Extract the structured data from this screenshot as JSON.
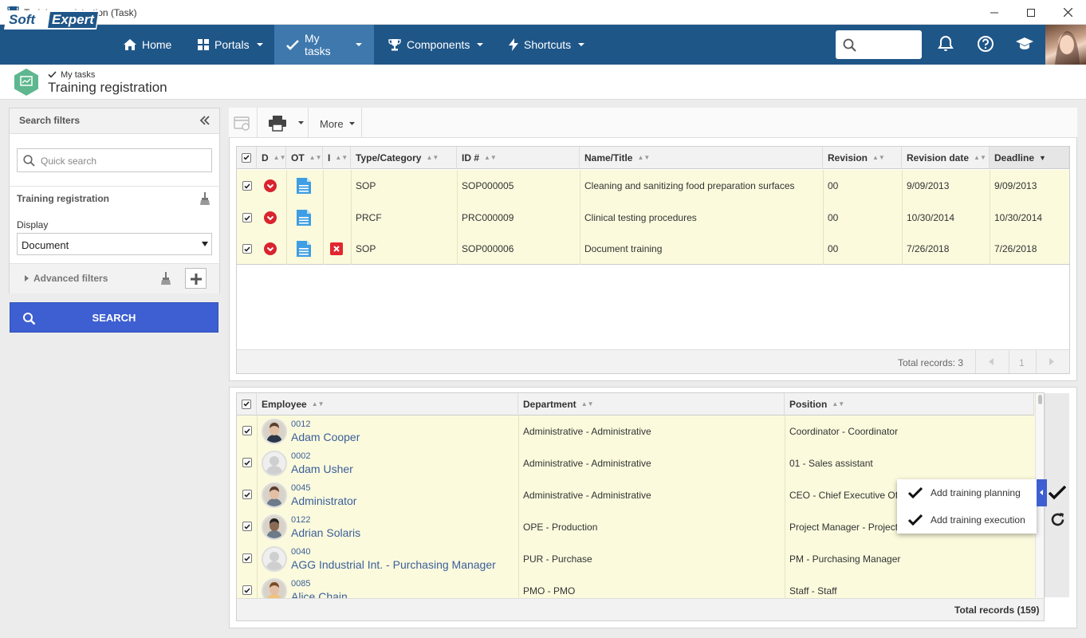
{
  "window": {
    "title": "Training registration (Task)"
  },
  "nav": {
    "brand": {
      "part1": "Soft",
      "part2": "Expert"
    },
    "items": [
      {
        "label": "Home"
      },
      {
        "label": "Portals"
      },
      {
        "label": "My tasks"
      },
      {
        "label": "Components"
      },
      {
        "label": "Shortcuts"
      }
    ]
  },
  "page": {
    "breadcrumb": "My tasks",
    "title": "Training registration"
  },
  "sidebar": {
    "header": "Search filters",
    "quick_search_placeholder": "Quick search",
    "section_title": "Training registration",
    "display_label": "Display",
    "display_value": "Document",
    "advanced_filters": "Advanced filters",
    "search_button": "SEARCH"
  },
  "toolbar": {
    "more_label": "More"
  },
  "documents_grid": {
    "columns": [
      "D",
      "OT",
      "I",
      "Type/Category",
      "ID #",
      "Name/Title",
      "Revision",
      "Revision date",
      "Deadline"
    ],
    "rows": [
      {
        "type": "SOP",
        "id": "SOP000005",
        "name": "Cleaning and sanitizing food preparation surfaces",
        "revision": "00",
        "revision_date": "9/09/2013",
        "deadline": "9/09/2013",
        "has_issue": false
      },
      {
        "type": "PRCF",
        "id": "PRC000009",
        "name": "Clinical testing procedures",
        "revision": "00",
        "revision_date": "10/30/2014",
        "deadline": "10/30/2014",
        "has_issue": false
      },
      {
        "type": "SOP",
        "id": "SOP000006",
        "name": "Document training",
        "revision": "00",
        "revision_date": "7/26/2018",
        "deadline": "7/26/2018",
        "has_issue": true
      }
    ],
    "total_records": "Total records: 3",
    "current_page": "1"
  },
  "employees_grid": {
    "columns": [
      "Employee",
      "Department",
      "Position"
    ],
    "rows": [
      {
        "id": "0012",
        "name": "Adam Cooper",
        "department": "Administrative - Administrative",
        "position": "Coordinator - Coordinator",
        "avatar": "photo-man-suit"
      },
      {
        "id": "0002",
        "name": "Adam Usher",
        "department": "Administrative - Administrative",
        "position": "01 - Sales assistant",
        "avatar": "placeholder"
      },
      {
        "id": "0045",
        "name": "Administrator",
        "department": "Administrative - Administrative",
        "position": "CEO - Chief Executive Of",
        "avatar": "photo-man-casual"
      },
      {
        "id": "0122",
        "name": "Adrian Solaris",
        "department": "OPE - Production",
        "position": "Project Manager - Project",
        "avatar": "photo-man-dark"
      },
      {
        "id": "0040",
        "name": "AGG Industrial Int. - Purchasing Manager",
        "department": "PUR - Purchase",
        "position": "PM - Purchasing Manager",
        "avatar": "placeholder"
      },
      {
        "id": "0085",
        "name": "Alice Chain",
        "department": "PMO - PMO",
        "position": "Staff - Staff",
        "avatar": "photo-woman"
      }
    ],
    "total_records": "Total records (159)"
  },
  "context_menu": {
    "items": [
      "Add training planning",
      "Add training execution"
    ]
  },
  "colors": {
    "nav_bg": "#1f5688",
    "nav_active": "#3e78ad",
    "search_button": "#3e5fd1",
    "row_highlight": "#fbfadd",
    "link": "#3b5e99",
    "status_red": "#d9232d"
  }
}
